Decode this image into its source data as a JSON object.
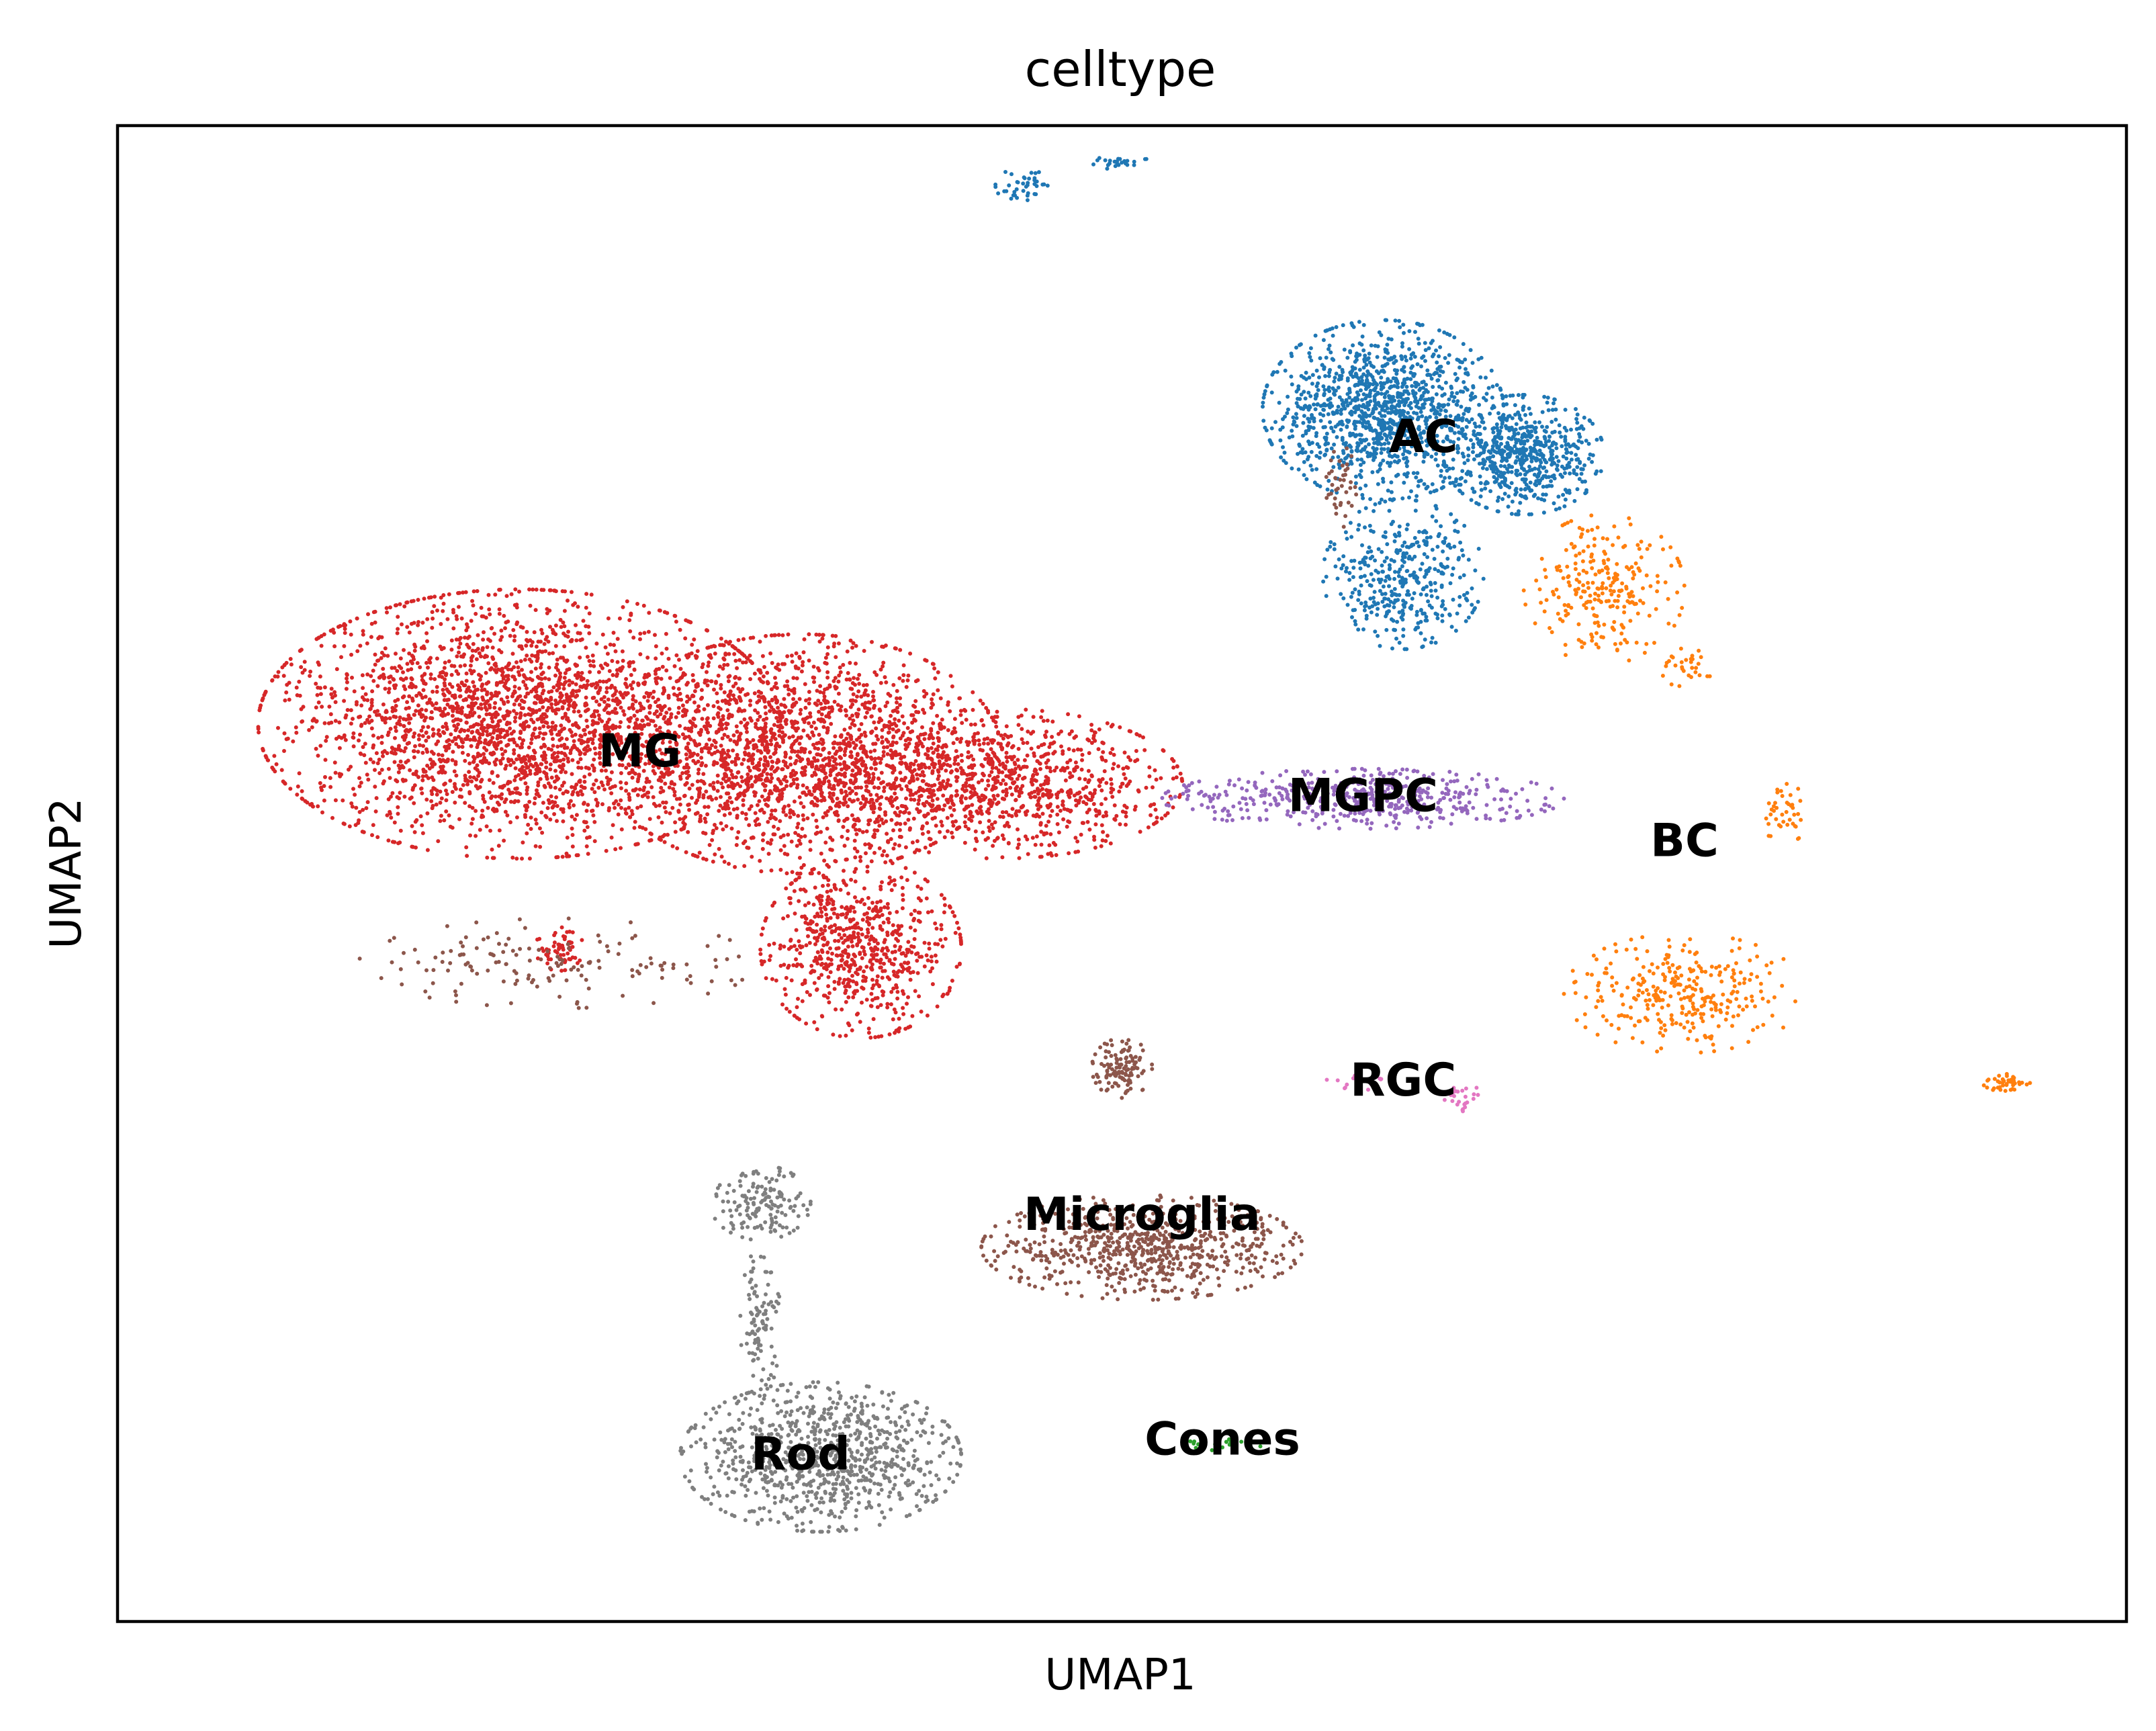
{
  "chart_data": {
    "type": "scatter",
    "title": "celltype",
    "xlabel": "UMAP1",
    "ylabel": "UMAP2",
    "xlim": [
      0,
      100
    ],
    "ylim": [
      0,
      100
    ],
    "ticks": false,
    "grid": false,
    "legend": "on data",
    "series": [
      {
        "name": "MG",
        "color": "#d62728",
        "label_pos": [
          26,
          58
        ],
        "clusters": [
          {
            "cx": 20,
            "cy": 60,
            "rx": 13,
            "ry": 9,
            "n": 2600
          },
          {
            "cx": 34,
            "cy": 58,
            "rx": 10,
            "ry": 8,
            "n": 1800
          },
          {
            "cx": 44,
            "cy": 56,
            "rx": 9,
            "ry": 5,
            "n": 1000
          },
          {
            "cx": 37,
            "cy": 45,
            "rx": 5,
            "ry": 6,
            "n": 700
          },
          {
            "cx": 22,
            "cy": 45,
            "rx": 1.2,
            "ry": 1.5,
            "n": 60
          }
        ]
      },
      {
        "name": "AC",
        "color": "#1f77b4",
        "label_pos": [
          65,
          79
        ],
        "clusters": [
          {
            "cx": 63,
            "cy": 81,
            "rx": 6,
            "ry": 6,
            "n": 1200
          },
          {
            "cx": 70,
            "cy": 78,
            "rx": 4,
            "ry": 4,
            "n": 600
          },
          {
            "cx": 64,
            "cy": 70,
            "rx": 4,
            "ry": 5,
            "n": 400
          },
          {
            "cx": 45,
            "cy": 96,
            "rx": 1.3,
            "ry": 1.2,
            "n": 40
          },
          {
            "cx": 50,
            "cy": 97.5,
            "rx": 1.5,
            "ry": 0.5,
            "n": 25
          }
        ]
      },
      {
        "name": "BC",
        "color": "#ff7f0e",
        "label_pos": [
          78,
          52
        ],
        "clusters": [
          {
            "cx": 74,
            "cy": 69,
            "rx": 4,
            "ry": 5,
            "n": 250
          },
          {
            "cx": 78,
            "cy": 64,
            "rx": 1.5,
            "ry": 1.5,
            "n": 30
          },
          {
            "cx": 83,
            "cy": 54,
            "rx": 1.2,
            "ry": 2,
            "n": 40
          },
          {
            "cx": 78,
            "cy": 42,
            "rx": 6,
            "ry": 4,
            "n": 300
          },
          {
            "cx": 94,
            "cy": 36,
            "rx": 1.2,
            "ry": 0.6,
            "n": 40
          }
        ]
      },
      {
        "name": "MGPC",
        "color": "#9467bd",
        "label_pos": [
          62,
          55
        ],
        "clusters": [
          {
            "cx": 62,
            "cy": 55,
            "rx": 10,
            "ry": 2,
            "n": 500
          }
        ]
      },
      {
        "name": "RGC",
        "color": "#e377c2",
        "label_pos": [
          64,
          36
        ],
        "clusters": [
          {
            "cx": 62,
            "cy": 36,
            "rx": 2,
            "ry": 0.5,
            "n": 15
          },
          {
            "cx": 67,
            "cy": 35,
            "rx": 1,
            "ry": 1,
            "n": 25
          }
        ]
      },
      {
        "name": "Microglia",
        "color": "#8c564b",
        "label_pos": [
          51,
          27
        ],
        "clusters": [
          {
            "cx": 51,
            "cy": 25,
            "rx": 8,
            "ry": 3.5,
            "n": 700
          },
          {
            "cx": 50,
            "cy": 37,
            "rx": 1.5,
            "ry": 2,
            "n": 120
          },
          {
            "cx": 22,
            "cy": 44,
            "rx": 10,
            "ry": 3,
            "n": 150
          },
          {
            "cx": 61,
            "cy": 76,
            "rx": 1,
            "ry": 3,
            "n": 40
          }
        ]
      },
      {
        "name": "Rod",
        "color": "#7f7f7f",
        "label_pos": [
          34,
          11
        ],
        "clusters": [
          {
            "cx": 35,
            "cy": 11,
            "rx": 7,
            "ry": 5,
            "n": 900
          },
          {
            "cx": 32,
            "cy": 28,
            "rx": 2.5,
            "ry": 2.5,
            "n": 150
          },
          {
            "cx": 32,
            "cy": 20,
            "rx": 1,
            "ry": 5,
            "n": 100
          }
        ]
      },
      {
        "name": "Cones",
        "color": "#2ca02c",
        "label_pos": [
          55,
          12
        ],
        "clusters": [
          {
            "cx": 55,
            "cy": 12,
            "rx": 3,
            "ry": 0.6,
            "n": 20
          }
        ]
      }
    ]
  }
}
